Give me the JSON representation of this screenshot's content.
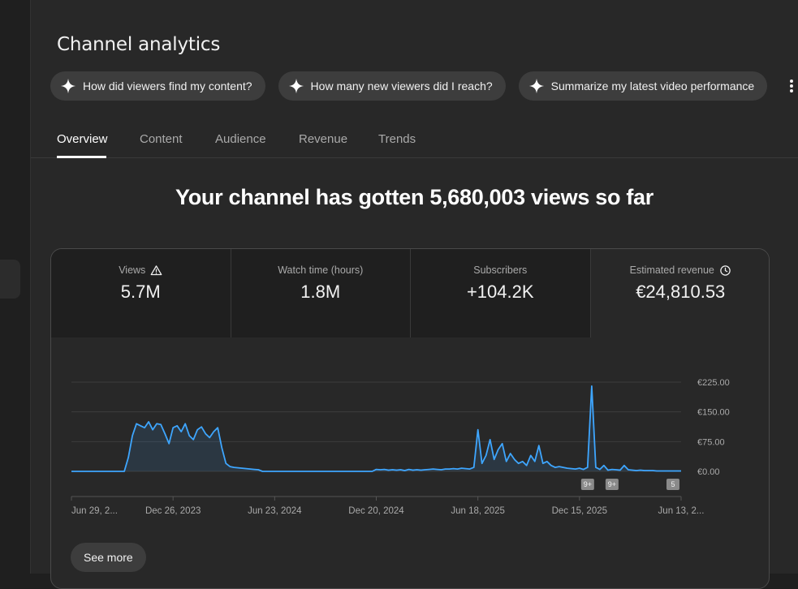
{
  "page": {
    "title": "Channel analytics",
    "headline": "Your channel has gotten 5,680,003 views so far"
  },
  "chips": [
    {
      "label": "How did viewers find my content?"
    },
    {
      "label": "How many new viewers did I reach?"
    },
    {
      "label": "Summarize my latest video performance"
    }
  ],
  "tabs": [
    {
      "label": "Overview",
      "active": true
    },
    {
      "label": "Content"
    },
    {
      "label": "Audience"
    },
    {
      "label": "Revenue"
    },
    {
      "label": "Trends"
    }
  ],
  "metrics": [
    {
      "label": "Views",
      "value": "5.7M",
      "icon": "warning-icon"
    },
    {
      "label": "Watch time (hours)",
      "value": "1.8M"
    },
    {
      "label": "Subscribers",
      "value": "+104.2K"
    },
    {
      "label": "Estimated revenue",
      "value": "€24,810.53",
      "icon": "clock-icon",
      "selected": true
    }
  ],
  "see_more_label": "See more",
  "colors": {
    "line": "#3ea6ff",
    "accent_white": "#ffffff"
  },
  "chart_data": {
    "type": "line",
    "series_name": "Estimated revenue",
    "ylim": [
      0,
      225
    ],
    "y_ticks": [
      "€225.00",
      "€150.00",
      "€75.00",
      "€0.00"
    ],
    "y_tick_values": [
      225,
      150,
      75,
      0
    ],
    "x_ticks": [
      "Jun 29, 2...",
      "Dec 26, 2023",
      "Jun 23, 2024",
      "Dec 20, 2024",
      "Jun 18, 2025",
      "Dec 15, 2025",
      "Jun 13, 2..."
    ],
    "x_tick_index": [
      0,
      25,
      50,
      75,
      100,
      125,
      150
    ],
    "badges": [
      {
        "label": "9+",
        "index": 127
      },
      {
        "label": "9+",
        "index": 133
      },
      {
        "label": "5",
        "index": 148
      }
    ],
    "values": [
      0,
      0,
      0,
      0,
      0,
      0,
      0,
      0,
      0,
      0,
      0,
      0,
      0,
      0,
      35,
      90,
      120,
      115,
      110,
      125,
      105,
      120,
      118,
      95,
      70,
      110,
      115,
      100,
      120,
      90,
      80,
      105,
      112,
      95,
      85,
      100,
      110,
      60,
      20,
      12,
      10,
      9,
      8,
      7,
      6,
      5,
      4,
      0,
      0,
      0,
      0,
      0,
      0,
      0,
      0,
      0,
      0,
      0,
      0,
      0,
      0,
      0,
      0,
      0,
      0,
      0,
      0,
      0,
      0,
      0,
      0,
      0,
      0,
      0,
      0,
      5,
      4,
      5,
      3,
      4,
      3,
      4,
      2,
      5,
      3,
      4,
      3,
      4,
      5,
      6,
      5,
      4,
      6,
      6,
      7,
      6,
      8,
      7,
      6,
      10,
      105,
      20,
      40,
      80,
      30,
      55,
      70,
      25,
      45,
      30,
      20,
      25,
      15,
      40,
      25,
      65,
      20,
      25,
      15,
      10,
      12,
      10,
      8,
      7,
      6,
      8,
      5,
      10,
      215,
      10,
      5,
      15,
      3,
      5,
      4,
      3,
      15,
      4,
      3,
      2,
      3,
      2,
      2,
      2,
      1,
      1,
      1,
      1,
      1,
      1,
      1
    ]
  }
}
